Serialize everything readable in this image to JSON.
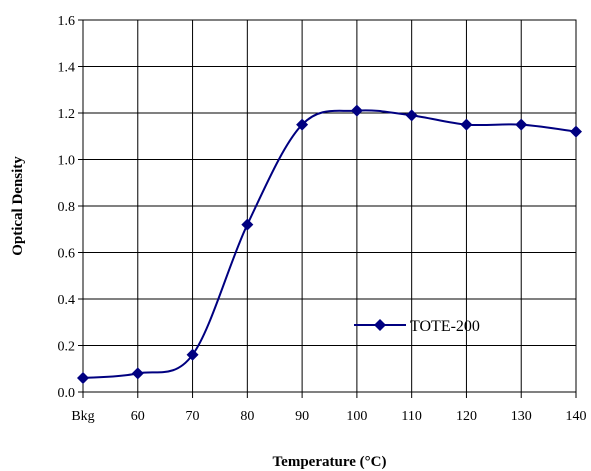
{
  "chart_data": {
    "type": "line",
    "title": "",
    "xlabel": "Temperature (°C)",
    "ylabel": "Optical Density",
    "categories": [
      "Bkg",
      "60",
      "70",
      "80",
      "90",
      "100",
      "110",
      "120",
      "130",
      "140"
    ],
    "series": [
      {
        "name": "TOTE-200",
        "color": "#000080",
        "marker": "diamond",
        "smooth": true,
        "values": [
          0.06,
          0.08,
          0.16,
          0.72,
          1.15,
          1.21,
          1.19,
          1.15,
          1.15,
          1.12
        ]
      }
    ],
    "ylim": [
      0,
      1.6
    ],
    "yticks": [
      "0.0",
      "0.2",
      "0.4",
      "0.6",
      "0.8",
      "1.0",
      "1.2",
      "1.4",
      "1.6"
    ],
    "grid": true,
    "legend_position": "lower-right"
  }
}
